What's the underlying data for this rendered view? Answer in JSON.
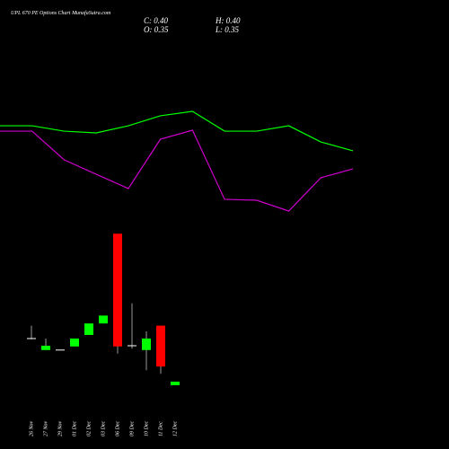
{
  "header": {
    "title": "UPL 670 PE Options Chart MunafaSutra.com",
    "close": "C: 0.40",
    "high": "H: 0.40",
    "open": "O: 0.35",
    "low": "L: 0.35"
  },
  "chart_data": [
    {
      "type": "line",
      "x": [
        0,
        1,
        2,
        3,
        4,
        5,
        6,
        7,
        8,
        9,
        10,
        11
      ],
      "xlim": [
        0,
        11
      ],
      "ylim": [
        0,
        100
      ],
      "series": [
        {
          "color": "#00ff00",
          "values": [
            73.3,
            73.3,
            69.3,
            68,
            73.3,
            80.7,
            84,
            69.3,
            69.3,
            73.3,
            61.3,
            54.7
          ]
        },
        {
          "color": "#cc00cc",
          "values": [
            69.3,
            69.3,
            48,
            37.3,
            26.7,
            63.3,
            70,
            18.7,
            18,
            10,
            34.7,
            41.3
          ]
        }
      ]
    },
    {
      "type": "candlestick",
      "categories": [
        "26 Nov",
        "27 Nov",
        "29 Nov",
        "01 Dec",
        "02 Dec",
        "03 Dec",
        "06 Dec",
        "09 Dec",
        "10 Dec",
        "11 Dec",
        "12 Dec"
      ],
      "open": [
        1.0,
        0.84,
        0.84,
        0.89,
        1.05,
        1.21,
        2.46,
        0.9,
        0.84,
        1.18,
        0.35
      ],
      "high": [
        1.18,
        1.0,
        0.84,
        1.0,
        1.21,
        1.32,
        2.46,
        1.49,
        1.1,
        1.18,
        0.4
      ],
      "low": [
        0.99,
        0.84,
        0.84,
        0.89,
        1.05,
        1.21,
        0.79,
        0.86,
        0.56,
        0.51,
        0.35
      ],
      "close": [
        1.0,
        0.9,
        0.84,
        1.0,
        1.21,
        1.32,
        0.89,
        0.9,
        1.0,
        0.61,
        0.4
      ],
      "ylim": [
        0.25,
        2.55
      ],
      "up_color": "#00ff00",
      "down_color": "#ff0000",
      "flat_color": "#ffffff"
    }
  ]
}
